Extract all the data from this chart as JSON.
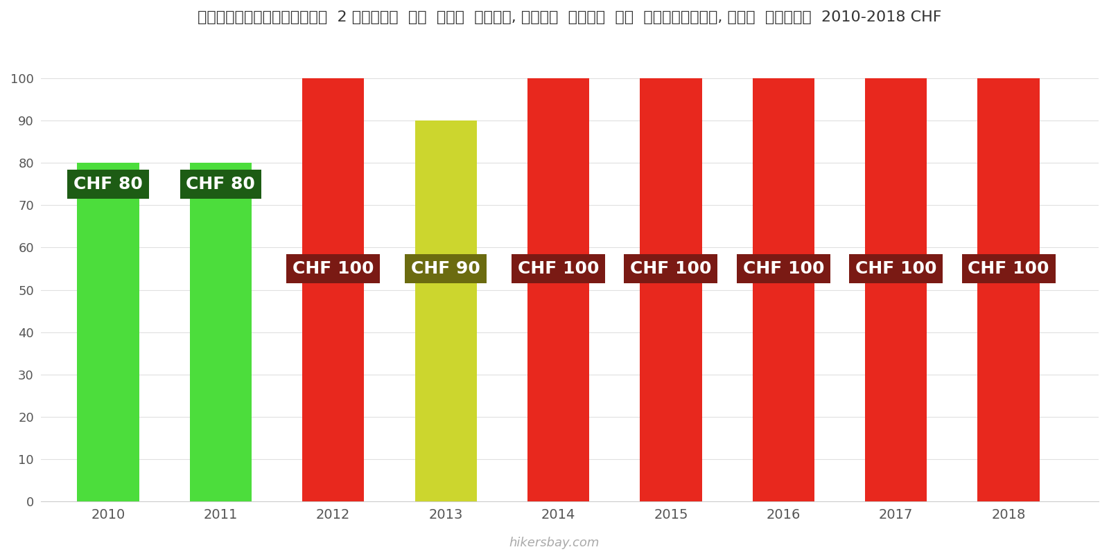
{
  "years": [
    2010,
    2011,
    2012,
    2013,
    2014,
    2015,
    2016,
    2017,
    2018
  ],
  "values": [
    80,
    80,
    100,
    90,
    100,
    100,
    100,
    100,
    100
  ],
  "bar_colors": [
    "#4cdd3c",
    "#4cdd3c",
    "#e8281e",
    "#ccd62e",
    "#e8281e",
    "#e8281e",
    "#e8281e",
    "#e8281e",
    "#e8281e"
  ],
  "label_bg_colors": [
    "#1d5c14",
    "#1d5c14",
    "#7a1a14",
    "#6b6b10",
    "#7a1a14",
    "#7a1a14",
    "#7a1a14",
    "#7a1a14",
    "#7a1a14"
  ],
  "labels": [
    "CHF 80",
    "CHF 80",
    "CHF 100",
    "CHF 90",
    "CHF 100",
    "CHF 100",
    "CHF 100",
    "CHF 100",
    "CHF 100"
  ],
  "label_y_positions": [
    75,
    75,
    55,
    55,
    55,
    55,
    55,
    55,
    55
  ],
  "title": "स्विट्ज़रलैण्ड  2 लोगों  के  लिए  भोजन, मध्य  दूरी  के  रेस्तरां, तीन  कोर्स  2010-2018 CHF",
  "ylim": [
    0,
    110
  ],
  "yticks": [
    0,
    10,
    20,
    30,
    40,
    50,
    60,
    70,
    80,
    90,
    100
  ],
  "watermark": "hikersbay.com",
  "bg_color": "#ffffff",
  "label_fontsize": 18,
  "bar_width": 0.55,
  "title_fontsize": 16
}
